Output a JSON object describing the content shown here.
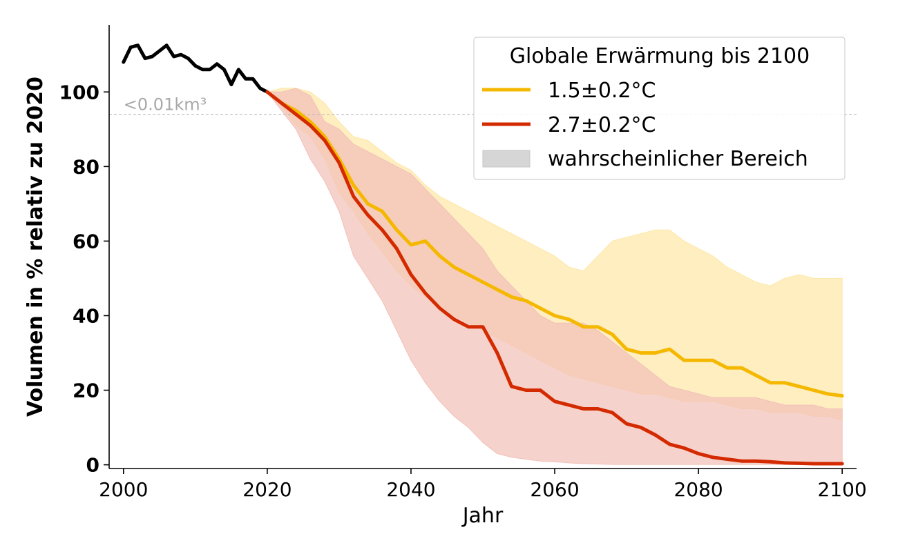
{
  "chart_data": {
    "type": "line",
    "xlabel": "Jahr",
    "ylabel": "Volumen in % relativ zu 2020",
    "xlim": [
      1998,
      2102
    ],
    "ylim": [
      -1,
      118
    ],
    "xticks": [
      "2000",
      "2020",
      "2040",
      "2060",
      "2080",
      "2100"
    ],
    "yticks": [
      "0",
      "20",
      "40",
      "60",
      "80",
      "100"
    ],
    "reference_line": {
      "y": 94,
      "label": "<0.01km³",
      "color": "#bbbbbb"
    },
    "legend": {
      "title": "Globale Erwärmung bis 2100",
      "position": "top-right",
      "entries": [
        "1.5±0.2°C",
        "2.7±0.2°C",
        "wahrscheinlicher Bereich"
      ]
    },
    "historical": {
      "color": "#000000",
      "x": [
        2000,
        2001,
        2002,
        2003,
        2004,
        2005,
        2006,
        2007,
        2008,
        2009,
        2010,
        2011,
        2012,
        2013,
        2014,
        2015,
        2016,
        2017,
        2018,
        2019,
        2020
      ],
      "y": [
        108,
        112,
        112.5,
        109,
        109.5,
        111,
        112.5,
        109.5,
        110,
        109,
        107,
        106,
        106,
        107.5,
        106,
        102,
        106,
        103.5,
        103.5,
        101,
        100
      ]
    },
    "series": [
      {
        "name": "1.5±0.2°C",
        "color": "#f5b800",
        "band_color": "#fde7a8",
        "x": [
          2020,
          2022,
          2024,
          2026,
          2028,
          2030,
          2032,
          2034,
          2036,
          2038,
          2040,
          2042,
          2044,
          2046,
          2048,
          2050,
          2052,
          2054,
          2056,
          2058,
          2060,
          2062,
          2064,
          2066,
          2068,
          2070,
          2072,
          2074,
          2076,
          2078,
          2080,
          2082,
          2084,
          2086,
          2088,
          2090,
          2092,
          2094,
          2096,
          2098,
          2100
        ],
        "y": [
          100,
          97,
          95,
          92,
          88,
          82,
          75,
          70,
          68,
          63,
          59,
          60,
          56,
          53,
          51,
          49,
          47,
          45,
          44,
          42,
          40,
          39,
          37,
          37,
          35,
          31,
          30,
          30,
          31,
          28,
          28,
          28,
          26,
          26,
          24,
          22,
          22,
          21,
          20,
          19,
          18.5
        ],
        "upper": [
          100,
          101,
          101,
          100,
          97,
          92,
          88,
          87,
          84,
          81,
          79,
          75,
          72,
          70,
          68,
          66,
          64,
          62,
          60,
          58,
          56,
          53,
          52,
          56,
          60,
          61,
          62,
          63,
          63,
          60,
          58,
          56,
          53,
          51,
          49,
          48,
          50,
          51,
          50,
          50,
          50
        ],
        "lower": [
          100,
          96,
          91,
          88,
          82,
          73,
          68,
          62,
          57,
          52,
          48,
          45,
          43,
          40,
          38,
          36,
          34,
          32,
          30,
          28,
          26,
          24,
          23,
          22,
          21,
          20,
          19,
          19,
          18,
          17,
          17,
          17,
          16,
          15,
          15,
          14,
          14,
          14,
          13,
          13,
          12
        ]
      },
      {
        "name": "2.7±0.2°C",
        "color": "#d42a00",
        "band_color": "#f2c0b8",
        "x": [
          2020,
          2022,
          2024,
          2026,
          2028,
          2030,
          2032,
          2034,
          2036,
          2038,
          2040,
          2042,
          2044,
          2046,
          2048,
          2050,
          2052,
          2054,
          2056,
          2058,
          2060,
          2062,
          2064,
          2066,
          2068,
          2070,
          2072,
          2074,
          2076,
          2078,
          2080,
          2082,
          2084,
          2086,
          2088,
          2090,
          2092,
          2094,
          2096,
          2098,
          2100
        ],
        "y": [
          100,
          97,
          94,
          91,
          87,
          81,
          72,
          67,
          63,
          58,
          51,
          46,
          42,
          39,
          37,
          37,
          30,
          21,
          20,
          20,
          17,
          16,
          15,
          15,
          14,
          11,
          10,
          8,
          5.5,
          4.5,
          3,
          2,
          1.5,
          1,
          1,
          0.8,
          0.5,
          0.4,
          0.3,
          0.3,
          0.3
        ],
        "upper": [
          100,
          100,
          101,
          99,
          92,
          90,
          86,
          84,
          82,
          80,
          78,
          74,
          70,
          66,
          62,
          58,
          52,
          48,
          44,
          40,
          38,
          38,
          38,
          36,
          33,
          30,
          27,
          24,
          21,
          20,
          19,
          18,
          18,
          18,
          18,
          17,
          16,
          16,
          16,
          15,
          15
        ],
        "lower": [
          100,
          95,
          90,
          82,
          76,
          68,
          56,
          50,
          44,
          36,
          28,
          22,
          17,
          13,
          10,
          6,
          3,
          2,
          1.5,
          1,
          0.8,
          0.5,
          0.3,
          0.2,
          0.1,
          0.1,
          0.1,
          0.1,
          0.1,
          0.1,
          0.1,
          0.1,
          0.1,
          0.1,
          0.1,
          0.1,
          0.1,
          0.1,
          0.1,
          0.1,
          0.1
        ]
      }
    ]
  }
}
